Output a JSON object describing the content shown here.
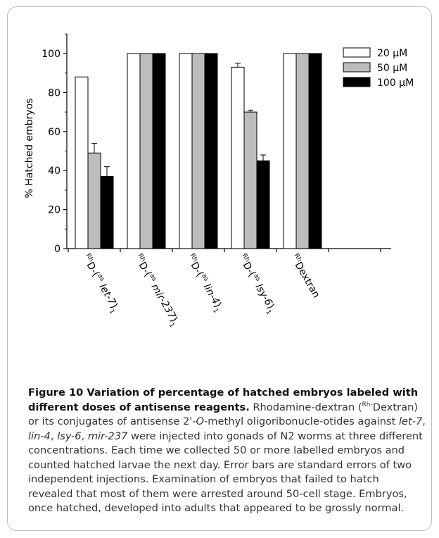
{
  "chart_data": {
    "type": "bar",
    "ylabel": "% Hatched embryos",
    "xlabel": "",
    "ylim": [
      0,
      100
    ],
    "yticks": [
      0,
      20,
      40,
      60,
      80,
      100
    ],
    "categories": [
      {
        "prefix": "Rh",
        "base": "D-(",
        "as": "as",
        "gene": "let-7",
        "suffix": ")",
        "sub": "1"
      },
      {
        "prefix": "Rh",
        "base": "D-(",
        "as": "as",
        "gene": "mir-237",
        "suffix": ")",
        "sub": "1"
      },
      {
        "prefix": "Rh",
        "base": "D-(",
        "as": "as",
        "gene": "lin-4",
        "suffix": ")",
        "sub": "1"
      },
      {
        "prefix": "Rh",
        "base": "D-(",
        "as": "as",
        "gene": "lsy-6",
        "suffix": ")",
        "sub": "1"
      },
      {
        "prefix": "Rh",
        "base": "Dextran",
        "as": "",
        "gene": "",
        "suffix": "",
        "sub": ""
      }
    ],
    "series": [
      {
        "name": "20 μM",
        "values": [
          88,
          100,
          100,
          93,
          100
        ],
        "errors": [
          0,
          0,
          0,
          2,
          0
        ],
        "color": "#ffffff"
      },
      {
        "name": "50 μM",
        "values": [
          49,
          100,
          100,
          70,
          100
        ],
        "errors": [
          5,
          0,
          0,
          1,
          0
        ],
        "color": "#bdbdbd"
      },
      {
        "name": "100 μM",
        "values": [
          37,
          100,
          100,
          45,
          100
        ],
        "errors": [
          5,
          0,
          0,
          3,
          0
        ],
        "color": "#000000"
      }
    ],
    "legend_position": "top-right",
    "grid": false
  },
  "caption": {
    "figure_label": "Figure 10 Variation of percentage of hatched embryos labeled with different doses of antisense reagents",
    "period": ".",
    "t1": " Rhodamine-dextran (",
    "t1_sup": "Rh-",
    "t2": "Dextran) or its conjugates of antisense 2'-",
    "t2_italic": "O",
    "t3": "-methyl oligoribonucle-otides against ",
    "g1": "let-7",
    "c1": ", ",
    "g2": "lin-4",
    "c2": ", ",
    "g3": "lsy-6",
    "c3": ", ",
    "g4": "mir-237",
    "t4": " were injected into gonads of N2 worms at three different concentrations. Each time we collected 50 or more labelled embryos and counted hatched larvae the next day. Error bars are standard errors of two independent injections. Examination of embryos that failed to hatch revealed that most of them were arrested around 50-cell stage. Embryos, once hatched, developed into adults that appeared to be grossly normal."
  }
}
